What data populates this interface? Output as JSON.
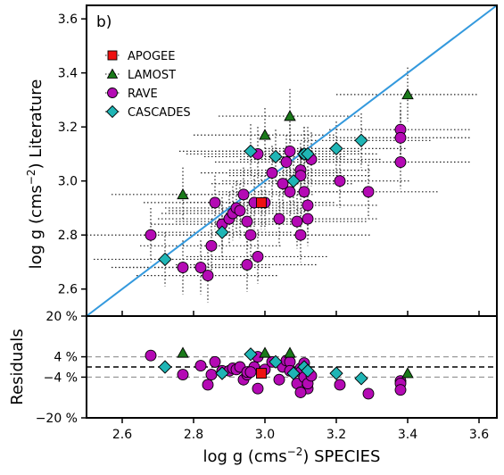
{
  "chart_data": {
    "type": "scatter",
    "panel_label": "b)",
    "top_panel": {
      "ylabel_main": "log g (cms",
      "ylabel_exp": "−2",
      "ylabel_tail": ") Literature",
      "xlim": [
        2.5,
        3.65
      ],
      "ylim": [
        2.5,
        3.65
      ],
      "yticks": [
        2.6,
        2.8,
        3.0,
        3.2,
        3.4,
        3.6
      ],
      "ytick_labels": [
        "2.6",
        "2.8",
        "3.0",
        "3.2",
        "3.4",
        "3.6"
      ],
      "identity_line": {
        "from": [
          2.5,
          2.5
        ],
        "to": [
          3.65,
          3.65
        ],
        "color": "#3399dd"
      },
      "legend_position": "upper-left",
      "series": [
        {
          "name": "APOGEE",
          "marker": "square",
          "color": "#ee1111",
          "points": [
            [
              2.99,
              2.92
            ]
          ]
        },
        {
          "name": "LAMOST",
          "marker": "triangle",
          "color": "#1a7a1a",
          "points": [
            [
              2.77,
              2.95
            ],
            [
              3.0,
              3.17
            ],
            [
              3.07,
              3.24
            ],
            [
              3.4,
              3.32
            ]
          ]
        },
        {
          "name": "RAVE",
          "marker": "circle",
          "color": "#b40ab4",
          "points": [
            [
              2.68,
              2.8
            ],
            [
              2.77,
              2.68
            ],
            [
              2.82,
              2.68
            ],
            [
              2.84,
              2.65
            ],
            [
              2.85,
              2.76
            ],
            [
              2.86,
              2.92
            ],
            [
              2.88,
              2.84
            ],
            [
              2.9,
              2.86
            ],
            [
              2.91,
              2.88
            ],
            [
              2.92,
              2.9
            ],
            [
              2.93,
              2.89
            ],
            [
              2.94,
              2.95
            ],
            [
              2.95,
              2.85
            ],
            [
              2.95,
              2.69
            ],
            [
              2.97,
              2.92
            ],
            [
              2.98,
              2.72
            ],
            [
              2.96,
              2.8
            ],
            [
              2.98,
              3.1
            ],
            [
              3.0,
              2.92
            ],
            [
              3.02,
              3.03
            ],
            [
              3.04,
              2.86
            ],
            [
              3.05,
              2.99
            ],
            [
              3.06,
              3.07
            ],
            [
              3.07,
              3.11
            ],
            [
              3.07,
              2.96
            ],
            [
              3.09,
              2.85
            ],
            [
              3.1,
              3.04
            ],
            [
              3.1,
              3.02
            ],
            [
              3.11,
              3.1
            ],
            [
              3.11,
              2.96
            ],
            [
              3.12,
              2.91
            ],
            [
              3.12,
              2.86
            ],
            [
              3.13,
              3.08
            ],
            [
              3.1,
              2.8
            ],
            [
              3.21,
              3.0
            ],
            [
              3.29,
              2.96
            ],
            [
              3.38,
              3.19
            ],
            [
              3.38,
              3.16
            ],
            [
              3.38,
              3.07
            ]
          ]
        },
        {
          "name": "CASCADES",
          "marker": "diamond",
          "color": "#1fb5b5",
          "points": [
            [
              2.72,
              2.71
            ],
            [
              2.88,
              2.81
            ],
            [
              2.96,
              3.11
            ],
            [
              3.03,
              3.09
            ],
            [
              3.08,
              3.0
            ],
            [
              3.11,
              3.1
            ],
            [
              3.12,
              3.1
            ],
            [
              3.2,
              3.12
            ],
            [
              3.27,
              3.15
            ]
          ]
        }
      ]
    },
    "bottom_panel": {
      "ylabel": "Residuals",
      "yticks": [
        20,
        4,
        -4,
        -20
      ],
      "ytick_labels": [
        "20 %",
        "4 %",
        "−4 %",
        "−20 %"
      ],
      "ylim": [
        -20,
        20
      ],
      "reference_lines": [
        4,
        0,
        -4
      ],
      "residuals": [
        {
          "series": "APOGEE",
          "points": [
            [
              2.99,
              -2.5
            ]
          ]
        },
        {
          "series": "LAMOST",
          "points": [
            [
              2.77,
              5.5
            ],
            [
              3.0,
              5.5
            ],
            [
              3.07,
              5.5
            ],
            [
              3.4,
              -2.5
            ]
          ]
        },
        {
          "series": "RAVE",
          "points": [
            [
              2.68,
              4.5
            ],
            [
              2.77,
              -3.0
            ],
            [
              2.82,
              0.5
            ],
            [
              2.84,
              -7.0
            ],
            [
              2.85,
              -3.0
            ],
            [
              2.86,
              2.0
            ],
            [
              2.88,
              -1.5
            ],
            [
              2.9,
              -1.5
            ],
            [
              2.91,
              -0.5
            ],
            [
              2.92,
              -1.0
            ],
            [
              2.93,
              0.0
            ],
            [
              2.94,
              -5.0
            ],
            [
              2.95,
              -3.0
            ],
            [
              2.95,
              -2.0
            ],
            [
              2.97,
              0.0
            ],
            [
              2.98,
              -8.5
            ],
            [
              2.96,
              -2.0
            ],
            [
              2.98,
              4.0
            ],
            [
              3.0,
              -1.0
            ],
            [
              3.02,
              2.0
            ],
            [
              3.04,
              -5.0
            ],
            [
              3.05,
              0.0
            ],
            [
              3.06,
              2.5
            ],
            [
              3.07,
              2.0
            ],
            [
              3.07,
              -1.5
            ],
            [
              3.09,
              -6.5
            ],
            [
              3.1,
              -0.5
            ],
            [
              3.1,
              -2.0
            ],
            [
              3.11,
              1.5
            ],
            [
              3.11,
              -4.0
            ],
            [
              3.12,
              -8.5
            ],
            [
              3.12,
              -6.5
            ],
            [
              3.13,
              -3.5
            ],
            [
              3.1,
              -10.0
            ],
            [
              3.21,
              -7.0
            ],
            [
              3.29,
              -10.5
            ],
            [
              3.38,
              -5.5
            ],
            [
              3.38,
              -6.5
            ],
            [
              3.38,
              -9.0
            ]
          ]
        },
        {
          "series": "CASCADES",
          "points": [
            [
              2.72,
              0.0
            ],
            [
              2.88,
              -2.5
            ],
            [
              2.96,
              5.0
            ],
            [
              3.03,
              2.0
            ],
            [
              3.08,
              -2.5
            ],
            [
              3.11,
              0.0
            ],
            [
              3.12,
              -1.5
            ],
            [
              3.2,
              -2.5
            ],
            [
              3.27,
              -4.5
            ]
          ]
        }
      ]
    },
    "xlabel_main": "log g (cms",
    "xlabel_exp": "−2",
    "xlabel_tail": ") SPECIES",
    "xticks": [
      2.6,
      2.8,
      3.0,
      3.2,
      3.4,
      3.6
    ],
    "xtick_labels": [
      "2.6",
      "2.8",
      "3.0",
      "3.2",
      "3.4",
      "3.6"
    ]
  }
}
